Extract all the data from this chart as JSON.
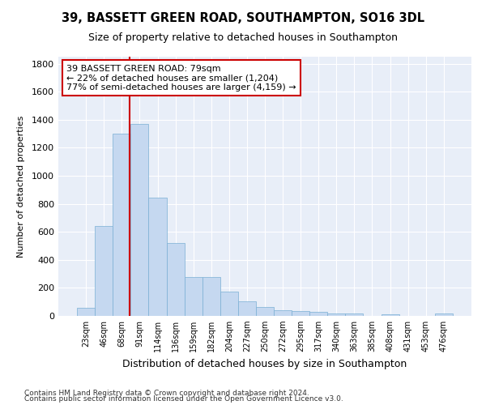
{
  "title": "39, BASSETT GREEN ROAD, SOUTHAMPTON, SO16 3DL",
  "subtitle": "Size of property relative to detached houses in Southampton",
  "xlabel": "Distribution of detached houses by size in Southampton",
  "ylabel": "Number of detached properties",
  "footnote1": "Contains HM Land Registry data © Crown copyright and database right 2024.",
  "footnote2": "Contains public sector information licensed under the Open Government Licence v3.0.",
  "bar_labels": [
    "23sqm",
    "46sqm",
    "68sqm",
    "91sqm",
    "114sqm",
    "136sqm",
    "159sqm",
    "182sqm",
    "204sqm",
    "227sqm",
    "250sqm",
    "272sqm",
    "295sqm",
    "317sqm",
    "340sqm",
    "363sqm",
    "385sqm",
    "408sqm",
    "431sqm",
    "453sqm",
    "476sqm"
  ],
  "bar_values": [
    55,
    640,
    1300,
    1370,
    845,
    520,
    275,
    275,
    175,
    105,
    65,
    40,
    35,
    30,
    20,
    15,
    0,
    10,
    0,
    0,
    15
  ],
  "bar_color": "#c5d8f0",
  "bar_edge_color": "#7aafd4",
  "red_line_x": 2.45,
  "annotation_line1": "39 BASSETT GREEN ROAD: 79sqm",
  "annotation_line2": "← 22% of detached houses are smaller (1,204)",
  "annotation_line3": "77% of semi-detached houses are larger (4,159) →",
  "ylim": [
    0,
    1850
  ],
  "yticks": [
    0,
    200,
    400,
    600,
    800,
    1000,
    1200,
    1400,
    1600,
    1800
  ],
  "background_color": "#ffffff",
  "plot_bg_color": "#e8eef8",
  "grid_color": "#ffffff",
  "annotation_box_facecolor": "#ffffff",
  "annotation_box_edgecolor": "#cc0000",
  "red_line_color": "#cc0000"
}
